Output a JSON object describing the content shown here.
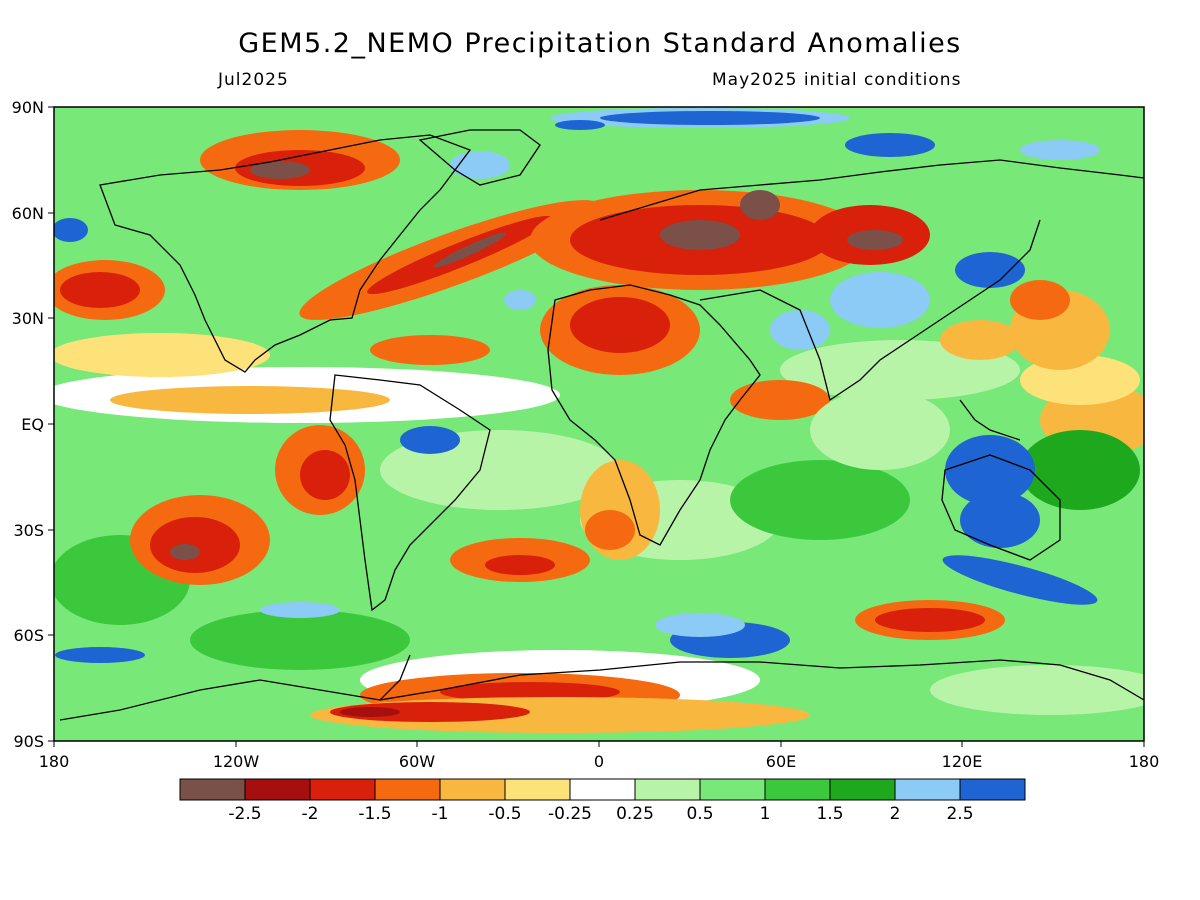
{
  "header": {
    "title": "GEM5.2_NEMO Precipitation Standard Anomalies",
    "left_subtitle": "Jul2025",
    "right_subtitle": "May2025 initial conditions"
  },
  "axes": {
    "lat_labels": [
      "90N",
      "60N",
      "30N",
      "EQ",
      "30S",
      "60S",
      "90S"
    ],
    "lon_labels": [
      "180",
      "120W",
      "60W",
      "0",
      "60E",
      "120E",
      "180"
    ]
  },
  "colorbar": {
    "labels": [
      "-2.5",
      "-2",
      "-1.5",
      "-1",
      "-0.5",
      "-0.25",
      "0.25",
      "0.5",
      "1",
      "1.5",
      "2",
      "2.5"
    ],
    "colors": [
      "#7a5048",
      "#a50f0f",
      "#d8200a",
      "#f56a10",
      "#f8b840",
      "#fde27a",
      "#ffffff",
      "#b8f4a8",
      "#78e878",
      "#3cc83c",
      "#1ea81e",
      "#8ccbf5",
      "#1e64d2"
    ]
  }
}
